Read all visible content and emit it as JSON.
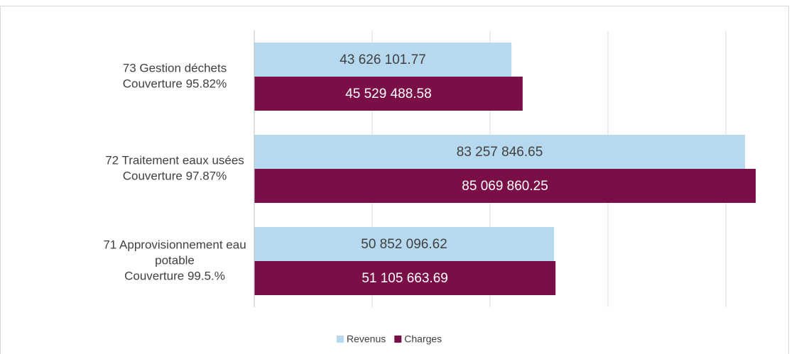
{
  "chart_data": {
    "type": "barh",
    "categories": [
      [
        "73 Gestion déchets",
        "Couverture 95.82%"
      ],
      [
        "72 Traitement eaux usées",
        "Couverture 97.87%"
      ],
      [
        "71 Approvisionnement eau",
        "potable",
        "Couverture 99.5.%"
      ]
    ],
    "series": [
      {
        "name": "Revenus",
        "color": "#b7d9ef",
        "values": [
          43626101.77,
          83257846.65,
          50852096.62
        ],
        "value_labels": [
          "43 626 101.77",
          "83 257 846.65",
          "50 852 096.62"
        ]
      },
      {
        "name": "Charges",
        "color": "#7a0f47",
        "values": [
          45529488.58,
          85069860.25,
          51105663.69
        ],
        "value_labels": [
          "45 529 488.58",
          "85 069 860.25",
          "51 105 663.69"
        ]
      }
    ],
    "xlim": [
      0,
      90000000
    ],
    "xticks": [
      0,
      20000000,
      40000000,
      60000000,
      80000000
    ],
    "grid": true,
    "legend": "bottom"
  }
}
